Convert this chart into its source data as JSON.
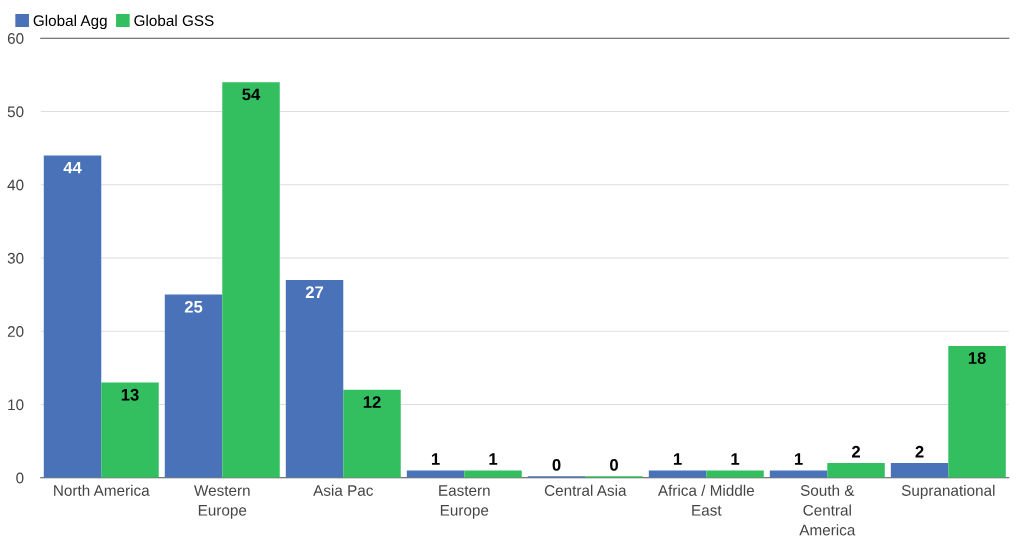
{
  "chart_data": {
    "type": "bar",
    "categories": [
      "North America",
      "Western\nEurope",
      "Asia Pac",
      "Eastern\nEurope",
      "Central Asia",
      "Africa / Middle\nEast",
      "South &\nCentral\nAmerica",
      "Supranational"
    ],
    "series": [
      {
        "name": "Global Agg",
        "color": "#4a72b8",
        "values": [
          44,
          25,
          27,
          1,
          0.2,
          1,
          1,
          2
        ],
        "value_labels": [
          "44",
          "25",
          "27",
          "1",
          "0",
          "1",
          "1",
          "2"
        ]
      },
      {
        "name": "Global GSS",
        "color": "#33bf5f",
        "values": [
          13,
          54,
          12,
          1,
          0.2,
          1,
          2,
          18
        ],
        "value_labels": [
          "13",
          "54",
          "12",
          "1",
          "0",
          "1",
          "2",
          "18"
        ]
      }
    ],
    "ylim": [
      0,
      60
    ],
    "yticks": [
      0,
      10,
      20,
      30,
      40,
      50,
      60
    ],
    "grid": "y",
    "legend": "top left"
  }
}
